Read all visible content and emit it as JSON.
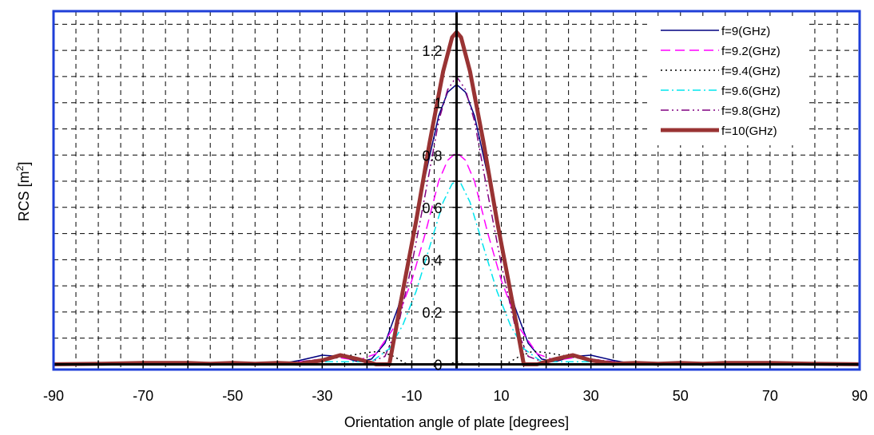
{
  "chart_data": {
    "type": "line",
    "title": "",
    "xlabel": "Orientation angle of plate [degrees]",
    "ylabel_main": "RCS [m",
    "ylabel_sup": "2",
    "ylabel_close": "]",
    "xlim": [
      -90,
      90
    ],
    "ylim": [
      -0.02,
      1.35
    ],
    "x_ticks": [
      -90,
      -70,
      -50,
      -30,
      -10,
      10,
      30,
      50,
      70,
      90
    ],
    "x_tick_labels": [
      "-90",
      "-70",
      "-50",
      "-30",
      "-10",
      "10",
      "30",
      "50",
      "70",
      "90"
    ],
    "y_ticks": [
      0,
      0.2,
      0.4,
      0.6,
      0.8,
      1,
      1.2
    ],
    "y_tick_labels": [
      "0",
      "0.2",
      "0.4",
      "0.6",
      "0.8",
      "1",
      "1.2"
    ],
    "grid": true,
    "legend_position": "top-right",
    "frame_color": "#1f3fd8",
    "series": [
      {
        "name": "f=9(GHz)",
        "color": "#000080",
        "dash": "solid",
        "width": 1.5,
        "x": [
          -90,
          -70,
          -60,
          -50,
          -40,
          -35,
          -30,
          -26,
          -22,
          -19,
          -16,
          -13,
          -10,
          -7,
          -4,
          -2,
          0,
          2,
          4,
          7,
          10,
          13,
          16,
          19,
          22,
          26,
          30,
          35,
          40,
          50,
          60,
          70,
          90
        ],
        "y": [
          0.0,
          0.005,
          0.002,
          0.004,
          0.0,
          0.015,
          0.035,
          0.03,
          0.01,
          0.02,
          0.08,
          0.22,
          0.45,
          0.72,
          0.95,
          1.04,
          1.07,
          1.04,
          0.95,
          0.72,
          0.45,
          0.22,
          0.08,
          0.02,
          0.01,
          0.03,
          0.035,
          0.015,
          0.0,
          0.004,
          0.002,
          0.005,
          0.0
        ]
      },
      {
        "name": "f=9.2(GHz)",
        "color": "#ff00ff",
        "dash": "12,6",
        "width": 1.5,
        "x": [
          -90,
          -60,
          -40,
          -30,
          -26,
          -22,
          -18,
          -14,
          -10,
          -7,
          -4,
          -2,
          0,
          2,
          4,
          7,
          10,
          14,
          18,
          22,
          26,
          30,
          40,
          60,
          90
        ],
        "y": [
          0.0,
          0.003,
          0.0,
          0.02,
          0.025,
          0.015,
          0.04,
          0.14,
          0.32,
          0.5,
          0.7,
          0.78,
          0.81,
          0.78,
          0.7,
          0.5,
          0.32,
          0.14,
          0.04,
          0.015,
          0.025,
          0.02,
          0.0,
          0.003,
          0.0
        ],
        "note": "dashed"
      },
      {
        "name": "f=9.4(GHz)",
        "color": "#000000",
        "dash": "2,4",
        "width": 1.5,
        "x": [
          -90,
          -60,
          -40,
          -30,
          -20,
          -17,
          -14,
          -11,
          -8,
          -5,
          -2,
          0,
          2,
          5,
          8,
          11,
          14,
          17,
          20,
          30,
          40,
          60,
          90
        ],
        "y": [
          0.0,
          0.003,
          0.0,
          0.015,
          0.045,
          0.05,
          0.03,
          0.0,
          0.0,
          0.0,
          0.0,
          0.01,
          0.0,
          0.0,
          0.0,
          0.0,
          0.03,
          0.05,
          0.045,
          0.015,
          0.0,
          0.003,
          0.0
        ]
      },
      {
        "name": "f=9.6(GHz)",
        "color": "#00e5ee",
        "dash": "10,4,2,4",
        "width": 1.5,
        "x": [
          -90,
          -60,
          -40,
          -30,
          -24,
          -19,
          -15,
          -12,
          -9,
          -6,
          -3,
          -1,
          0,
          1,
          3,
          6,
          9,
          12,
          15,
          19,
          24,
          30,
          40,
          60,
          90
        ],
        "y": [
          0.0,
          0.002,
          0.0,
          0.01,
          0.01,
          0.01,
          0.06,
          0.15,
          0.28,
          0.45,
          0.62,
          0.69,
          0.7,
          0.69,
          0.62,
          0.45,
          0.28,
          0.15,
          0.06,
          0.01,
          0.01,
          0.01,
          0.0,
          0.002,
          0.0
        ]
      },
      {
        "name": "f=9.8(GHz)",
        "color": "#800080",
        "dash": "10,4,2,4,2,4",
        "width": 1.5,
        "x": [
          -90,
          -60,
          -40,
          -30,
          -26,
          -20,
          -16,
          -13,
          -10,
          -7,
          -4,
          -2,
          0,
          2,
          4,
          7,
          10,
          13,
          16,
          20,
          26,
          30,
          40,
          60,
          90
        ],
        "y": [
          0.0,
          0.003,
          0.0,
          0.02,
          0.03,
          0.005,
          0.03,
          0.15,
          0.38,
          0.65,
          0.93,
          1.05,
          1.1,
          1.05,
          0.93,
          0.65,
          0.38,
          0.15,
          0.03,
          0.005,
          0.03,
          0.02,
          0.0,
          0.003,
          0.0
        ]
      },
      {
        "name": "f=10(GHz)",
        "color": "#993333",
        "dash": "solid",
        "width": 5,
        "x": [
          -90,
          -80,
          -70,
          -60,
          -55,
          -50,
          -45,
          -40,
          -35,
          -30,
          -26,
          -22,
          -18,
          -15,
          -12,
          -9,
          -6,
          -3,
          -1,
          0,
          1,
          3,
          6,
          9,
          12,
          15,
          18,
          22,
          26,
          30,
          35,
          40,
          45,
          50,
          55,
          60,
          70,
          80,
          90
        ],
        "y": [
          0.0,
          0.002,
          0.005,
          0.005,
          0.002,
          0.005,
          0.002,
          0.005,
          0.002,
          0.015,
          0.035,
          0.02,
          0.0,
          0.0,
          0.28,
          0.55,
          0.85,
          1.12,
          1.25,
          1.27,
          1.25,
          1.12,
          0.85,
          0.55,
          0.28,
          0.0,
          0.0,
          0.02,
          0.035,
          0.015,
          0.002,
          0.005,
          0.002,
          0.005,
          0.002,
          0.005,
          0.005,
          0.002,
          0.0
        ]
      }
    ]
  }
}
